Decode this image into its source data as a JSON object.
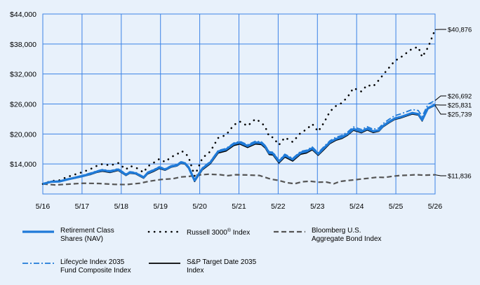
{
  "chart_data": {
    "type": "line",
    "x_ticks": [
      "5/16",
      "5/17",
      "5/18",
      "5/19",
      "5/20",
      "5/21",
      "5/22",
      "5/23",
      "5/24",
      "5/25",
      "5/26"
    ],
    "y_ticks": [
      "$14,000",
      "$20,000",
      "$26,000",
      "$32,000",
      "$38,000",
      "$44,000"
    ],
    "y_tick_values": [
      14000,
      20000,
      26000,
      32000,
      38000,
      44000
    ],
    "ylim": [
      8000,
      44000
    ],
    "grid": true,
    "legend_position": "bottom",
    "colors": {
      "background": "#E8F1FB",
      "grid": "#3B82E6",
      "retirement": "#1F7AD8",
      "russell": "#000000",
      "bloomberg": "#555555",
      "lifecycle": "#1F7AD8",
      "sp": "#000000"
    },
    "series": [
      {
        "name": "Retirement Class Shares (NAV)",
        "name_lines": [
          "Retirement Class",
          "Shares (NAV)"
        ],
        "style": "solid-thick-blue",
        "end_label": "$25,831",
        "x": [
          2016.38,
          2016.6,
          2016.8,
          2017.0,
          2017.2,
          2017.4,
          2017.6,
          2017.75,
          2017.9,
          2018.1,
          2018.3,
          2018.5,
          2018.6,
          2018.75,
          2018.95,
          2019.05,
          2019.2,
          2019.35,
          2019.5,
          2019.65,
          2019.8,
          2019.9,
          2020.0,
          2020.1,
          2020.25,
          2020.45,
          2020.65,
          2020.85,
          2021.05,
          2021.25,
          2021.4,
          2021.6,
          2021.8,
          2021.95,
          2022.05,
          2022.15,
          2022.25,
          2022.4,
          2022.55,
          2022.75,
          2022.95,
          2023.1,
          2023.25,
          2023.4,
          2023.55,
          2023.7,
          2023.85,
          2024.0,
          2024.15,
          2024.3,
          2024.5,
          2024.65,
          2024.8,
          2024.95,
          2025.05,
          2025.2,
          2025.35,
          2025.5,
          2025.65,
          2025.8,
          2025.95,
          2026.05,
          2026.2,
          2026.38
        ],
        "y": [
          10000,
          10450,
          10500,
          10900,
          11250,
          11600,
          12050,
          12450,
          12750,
          12500,
          12900,
          11850,
          12300,
          12150,
          11300,
          12200,
          12700,
          13300,
          12900,
          13500,
          13750,
          14300,
          14150,
          13300,
          10700,
          13100,
          14300,
          16500,
          16900,
          18000,
          18300,
          17600,
          18300,
          18200,
          17500,
          16200,
          16100,
          14500,
          15700,
          14900,
          16250,
          16500,
          17150,
          16000,
          17200,
          18350,
          19000,
          19350,
          20000,
          21000,
          20500,
          21050,
          20550,
          20750,
          21600,
          22400,
          23100,
          23400,
          23800,
          24200,
          24000,
          22800,
          25200,
          25831
        ]
      },
      {
        "name": "Russell 3000® Index",
        "name_prefix": "Russell 3000",
        "name_suffix": " Index",
        "name_sup": "®",
        "style": "dotted",
        "end_label": "$40,876",
        "x": [
          2016.38,
          2016.6,
          2016.8,
          2017.0,
          2017.2,
          2017.4,
          2017.6,
          2017.75,
          2017.9,
          2018.1,
          2018.3,
          2018.5,
          2018.6,
          2018.75,
          2018.95,
          2019.05,
          2019.2,
          2019.35,
          2019.5,
          2019.65,
          2019.8,
          2019.9,
          2020.0,
          2020.1,
          2020.25,
          2020.45,
          2020.65,
          2020.85,
          2021.05,
          2021.25,
          2021.4,
          2021.6,
          2021.8,
          2021.95,
          2022.05,
          2022.15,
          2022.25,
          2022.4,
          2022.55,
          2022.75,
          2022.95,
          2023.1,
          2023.25,
          2023.4,
          2023.55,
          2023.7,
          2023.85,
          2024.0,
          2024.15,
          2024.3,
          2024.5,
          2024.65,
          2024.8,
          2024.95,
          2025.05,
          2025.2,
          2025.35,
          2025.5,
          2025.65,
          2025.8,
          2025.95,
          2026.05,
          2026.2,
          2026.38
        ],
        "y": [
          10000,
          10600,
          10750,
          11400,
          11900,
          12400,
          13000,
          13600,
          14000,
          13700,
          14200,
          12900,
          13600,
          13300,
          12300,
          13500,
          14200,
          15000,
          14400,
          15400,
          15900,
          16600,
          16300,
          15300,
          11600,
          15200,
          16500,
          19200,
          19800,
          21800,
          22500,
          21600,
          23000,
          22300,
          21400,
          19500,
          19300,
          17800,
          19300,
          18400,
          20200,
          20900,
          22000,
          20500,
          22300,
          24500,
          25600,
          26200,
          27400,
          29200,
          28500,
          29800,
          29500,
          30800,
          31800,
          33200,
          34600,
          35300,
          36200,
          37100,
          37400,
          35400,
          37300,
          40876
        ]
      },
      {
        "name": "Bloomberg U.S. Aggregate Bond Index",
        "name_lines": [
          "Bloomberg U.S.",
          "Aggregate Bond Index"
        ],
        "style": "dashed",
        "end_label": "$11,836",
        "x": [
          2016.38,
          2016.7,
          2017.0,
          2017.4,
          2017.8,
          2018.2,
          2018.5,
          2018.85,
          2019.1,
          2019.4,
          2019.7,
          2019.9,
          2020.1,
          2020.3,
          2020.6,
          2020.9,
          2021.1,
          2021.3,
          2021.6,
          2021.9,
          2022.0,
          2022.2,
          2022.4,
          2022.6,
          2022.8,
          2023.0,
          2023.2,
          2023.4,
          2023.6,
          2023.8,
          2023.95,
          2024.1,
          2024.3,
          2024.5,
          2024.7,
          2024.9,
          2025.1,
          2025.3,
          2025.5,
          2025.7,
          2025.9,
          2026.1,
          2026.38
        ],
        "y": [
          10000,
          9800,
          9950,
          10150,
          10100,
          9920,
          9880,
          10150,
          10550,
          10900,
          11050,
          11400,
          11500,
          11750,
          11950,
          11850,
          11650,
          11850,
          11800,
          11700,
          11450,
          10950,
          10700,
          10250,
          10050,
          10450,
          10550,
          10350,
          10400,
          10050,
          10500,
          10650,
          10800,
          11000,
          11150,
          11350,
          11300,
          11550,
          11700,
          11750,
          11850,
          11750,
          11836
        ]
      },
      {
        "name": "Lifecycle Index 2035 Fund Composite Index",
        "name_lines": [
          "Lifecycle Index 2035",
          "Fund Composite Index"
        ],
        "style": "dashdot-blue",
        "end_label": "$26,692",
        "x": [
          2016.38,
          2016.6,
          2016.8,
          2017.0,
          2017.2,
          2017.4,
          2017.6,
          2017.75,
          2017.9,
          2018.1,
          2018.3,
          2018.5,
          2018.6,
          2018.75,
          2018.95,
          2019.05,
          2019.2,
          2019.35,
          2019.5,
          2019.65,
          2019.8,
          2019.9,
          2020.0,
          2020.1,
          2020.25,
          2020.45,
          2020.65,
          2020.85,
          2021.05,
          2021.25,
          2021.4,
          2021.6,
          2021.8,
          2021.95,
          2022.05,
          2022.15,
          2022.25,
          2022.4,
          2022.55,
          2022.75,
          2022.95,
          2023.1,
          2023.25,
          2023.4,
          2023.55,
          2023.7,
          2023.85,
          2024.0,
          2024.15,
          2024.3,
          2024.5,
          2024.65,
          2024.8,
          2024.95,
          2025.05,
          2025.2,
          2025.35,
          2025.5,
          2025.65,
          2025.8,
          2025.95,
          2026.05,
          2026.2,
          2026.38
        ],
        "y": [
          10000,
          10500,
          10600,
          11000,
          11350,
          11750,
          12200,
          12600,
          12900,
          12650,
          13050,
          12000,
          12450,
          12300,
          11450,
          12350,
          12850,
          13450,
          13050,
          13650,
          13900,
          14450,
          14300,
          13450,
          10800,
          13250,
          14500,
          16700,
          17100,
          18200,
          18550,
          17850,
          18550,
          18450,
          17700,
          16450,
          16350,
          14700,
          15950,
          15150,
          16500,
          16750,
          17400,
          16250,
          17500,
          18650,
          19350,
          19700,
          20400,
          21400,
          20900,
          21450,
          20950,
          21200,
          22050,
          22900,
          23650,
          24000,
          24450,
          24900,
          24700,
          23500,
          25950,
          26692
        ]
      },
      {
        "name": "S&P Target Date 2035 Index",
        "name_lines": [
          "S&P Target Date 2035",
          "Index"
        ],
        "style": "solid-black",
        "end_label": "$25,739",
        "x": [
          2016.38,
          2016.6,
          2016.8,
          2017.0,
          2017.2,
          2017.4,
          2017.6,
          2017.75,
          2017.9,
          2018.1,
          2018.3,
          2018.5,
          2018.6,
          2018.75,
          2018.95,
          2019.05,
          2019.2,
          2019.35,
          2019.5,
          2019.65,
          2019.8,
          2019.9,
          2020.0,
          2020.1,
          2020.25,
          2020.45,
          2020.65,
          2020.85,
          2021.05,
          2021.25,
          2021.4,
          2021.6,
          2021.8,
          2021.95,
          2022.05,
          2022.15,
          2022.25,
          2022.4,
          2022.55,
          2022.75,
          2022.95,
          2023.1,
          2023.25,
          2023.4,
          2023.55,
          2023.7,
          2023.85,
          2024.0,
          2024.15,
          2024.3,
          2024.5,
          2024.65,
          2024.8,
          2024.95,
          2025.05,
          2025.2,
          2025.35,
          2025.5,
          2025.65,
          2025.8,
          2025.95,
          2026.05,
          2026.2,
          2026.38
        ],
        "y": [
          10000,
          10400,
          10450,
          10850,
          11150,
          11500,
          11900,
          12300,
          12550,
          12300,
          12700,
          11700,
          12150,
          12000,
          11150,
          12000,
          12500,
          13100,
          12750,
          13350,
          13600,
          14150,
          14000,
          13100,
          10500,
          12850,
          14050,
          16200,
          16600,
          17700,
          18000,
          17300,
          18000,
          17900,
          17200,
          15900,
          15800,
          14200,
          15400,
          14600,
          15950,
          16200,
          16850,
          15750,
          16900,
          18100,
          18750,
          19100,
          19750,
          20750,
          20250,
          20800,
          20300,
          20550,
          21400,
          22200,
          22900,
          23200,
          23600,
          24000,
          23800,
          22600,
          25050,
          25739
        ]
      }
    ]
  }
}
